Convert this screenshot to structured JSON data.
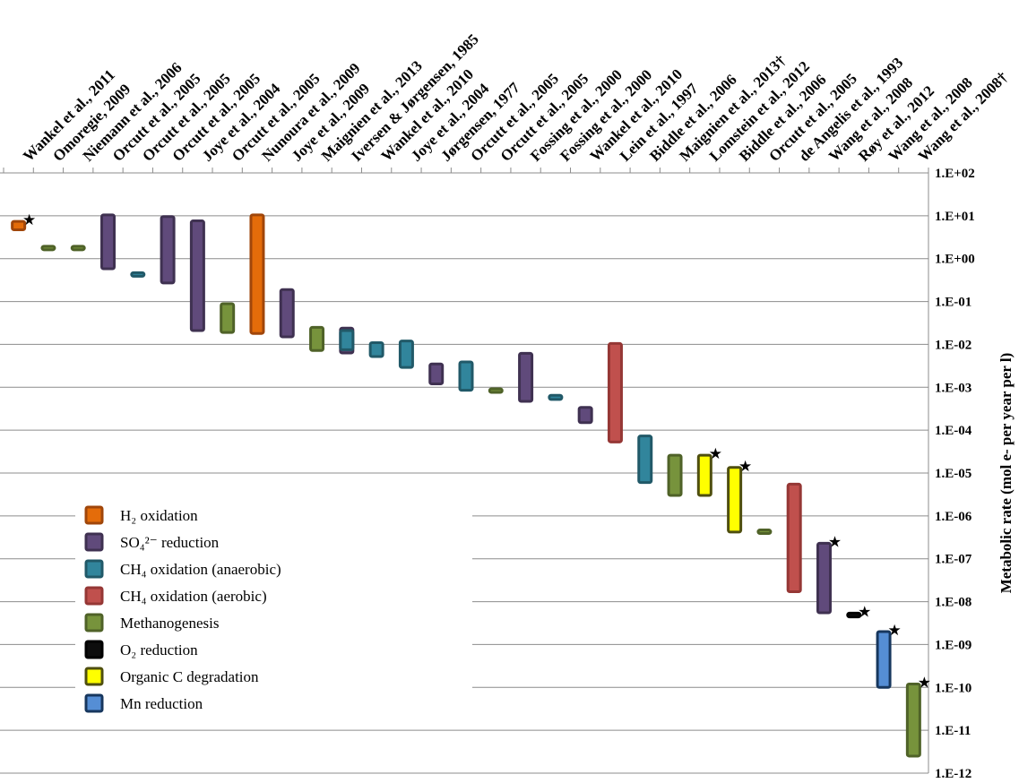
{
  "chart_data": {
    "type": "bar",
    "chart_subtype": "floating range bars on log scale",
    "y_scale": "log",
    "ylabel": "Metabolic rate (mol e- per year per l)",
    "ylim": [
      1e-12,
      100
    ],
    "y_tick_labels": [
      "1.E+02",
      "1.E+01",
      "1.E+00",
      "1.E-01",
      "1.E-02",
      "1.E-03",
      "1.E-04",
      "1.E-05",
      "1.E-06",
      "1.E-07",
      "1.E-08",
      "1.E-09",
      "1.E-10",
      "1.E-11",
      "1.E-12"
    ],
    "y_axis_position": "right",
    "grid": true,
    "legend_position": "bottom-left",
    "categories": [
      "Wankel et al., 2011",
      "Omoregie, 2009",
      "Niemann et al., 2006",
      "Orcutt et al., 2005",
      "Orcutt et al., 2005",
      "Orcutt et al., 2005",
      "Joye et al., 2004",
      "Orcutt et al., 2005",
      "Nunoura et al., 2009",
      "Joye et al., 2009",
      "Maignien et al., 2013",
      "Iversen & Jørgensen, 1985",
      "Wankel et al., 2010",
      "Joye et al., 2004",
      "Jørgensen, 1977",
      "Orcutt et al., 2005",
      "Orcutt et al., 2005",
      "Fossing et al., 2000",
      "Fossing et al., 2000",
      "Wankel et al., 2010",
      "Lein et al., 1997",
      "Biddle et al., 2006",
      "Maignien et al., 2013†",
      "Lomstein et al., 2012",
      "Biddle et al., 2006",
      "Orcutt et al., 2005",
      "de Angelis et al., 1993",
      "Wang et al., 2008",
      "Røy et al., 2012",
      "Wang et al., 2008",
      "Wang et al., 2008†"
    ],
    "series": [
      {
        "name": "H2 oxidation",
        "color": "#e46c0a",
        "border": "#a0460a",
        "ranges": [
          {
            "i": 0,
            "low": 4.7,
            "high": 7.4,
            "star": true
          },
          {
            "i": 8,
            "low": 0.018,
            "high": 10.5
          }
        ]
      },
      {
        "name": "SO42- reduction",
        "color": "#604a7b",
        "border": "#3f3151",
        "ranges": [
          {
            "i": 3,
            "low": 0.58,
            "high": 10.5
          },
          {
            "i": 5,
            "low": 0.27,
            "high": 9.6
          },
          {
            "i": 6,
            "low": 0.021,
            "high": 7.6
          },
          {
            "i": 9,
            "low": 0.015,
            "high": 0.19
          },
          {
            "i": 11,
            "low": 0.0063,
            "high": 0.024
          },
          {
            "i": 14,
            "low": 0.0012,
            "high": 0.0035
          },
          {
            "i": 17,
            "low": 0.00047,
            "high": 0.0062
          },
          {
            "i": 19,
            "low": 0.00015,
            "high": 0.00034
          },
          {
            "i": 27,
            "low": 5.5e-09,
            "high": 2.3e-07,
            "star": true
          }
        ]
      },
      {
        "name": "CH4 oxidation (anaerobic)",
        "color": "#31859c",
        "border": "#215968",
        "ranges": [
          {
            "i": 4,
            "low": 0.4,
            "high": 0.47
          },
          {
            "i": 11,
            "low": 0.0075,
            "high": 0.021
          },
          {
            "i": 12,
            "low": 0.0052,
            "high": 0.011
          },
          {
            "i": 13,
            "low": 0.0029,
            "high": 0.012
          },
          {
            "i": 15,
            "low": 0.00085,
            "high": 0.0039
          },
          {
            "i": 18,
            "low": 0.00052,
            "high": 0.00065
          },
          {
            "i": 21,
            "low": 6e-06,
            "high": 7.3e-05
          }
        ]
      },
      {
        "name": "CH4 oxidation (aerobic)",
        "color": "#c0504d",
        "border": "#953735",
        "ranges": [
          {
            "i": 20,
            "low": 5.3e-05,
            "high": 0.0105
          },
          {
            "i": 26,
            "low": 1.7e-08,
            "high": 5.5e-06
          }
        ]
      },
      {
        "name": "Methanogenesis",
        "color": "#77933c",
        "border": "#4f6228",
        "ranges": [
          {
            "i": 1,
            "low": 1.85,
            "high": 1.95
          },
          {
            "i": 2,
            "low": 1.85,
            "high": 1.95
          },
          {
            "i": 7,
            "low": 0.019,
            "high": 0.089
          },
          {
            "i": 10,
            "low": 0.0072,
            "high": 0.025
          },
          {
            "i": 16,
            "low": 0.00082,
            "high": 0.00092
          },
          {
            "i": 22,
            "low": 3e-06,
            "high": 2.6e-05
          },
          {
            "i": 25,
            "low": 4.3e-07,
            "high": 4.7e-07
          },
          {
            "i": 30,
            "low": 2.5e-12,
            "high": 1.2e-10,
            "star": true
          }
        ]
      },
      {
        "name": "O2 reduction",
        "color": "#0d0d0d",
        "border": "#000000",
        "ranges": [
          {
            "i": 28,
            "low": 4.4e-09,
            "high": 5.4e-09,
            "star": true
          }
        ]
      },
      {
        "name": "Organic C degradation",
        "color": "#ffff00",
        "border": "#4f4f0f",
        "ranges": [
          {
            "i": 23,
            "low": 3e-06,
            "high": 2.6e-05,
            "star": true
          },
          {
            "i": 24,
            "low": 4.2e-07,
            "high": 1.35e-05,
            "star": true
          }
        ]
      },
      {
        "name": "Mn reduction",
        "color": "#558ed5",
        "border": "#17375e",
        "ranges": [
          {
            "i": 29,
            "low": 1e-10,
            "high": 2e-09,
            "star": true
          }
        ]
      }
    ]
  },
  "legend": {
    "items": [
      {
        "label": "H₂ oxidation",
        "color": "#e46c0a",
        "border": "#a0460a"
      },
      {
        "label": "SO₄²⁻ reduction",
        "color": "#604a7b",
        "border": "#3f3151"
      },
      {
        "label": "CH₄ oxidation (anaerobic)",
        "color": "#31859c",
        "border": "#215968"
      },
      {
        "label": "CH₄ oxidation (aerobic)",
        "color": "#c0504d",
        "border": "#953735"
      },
      {
        "label": "Methanogenesis",
        "color": "#77933c",
        "border": "#4f6228"
      },
      {
        "label": "O₂ reduction",
        "color": "#0d0d0d",
        "border": "#000000"
      },
      {
        "label": "Organic C degradation",
        "color": "#ffff00",
        "border": "#4f4f0f"
      },
      {
        "label": "Mn reduction",
        "color": "#558ed5",
        "border": "#17375e"
      }
    ]
  },
  "markers": {
    "star_glyph": "★"
  }
}
